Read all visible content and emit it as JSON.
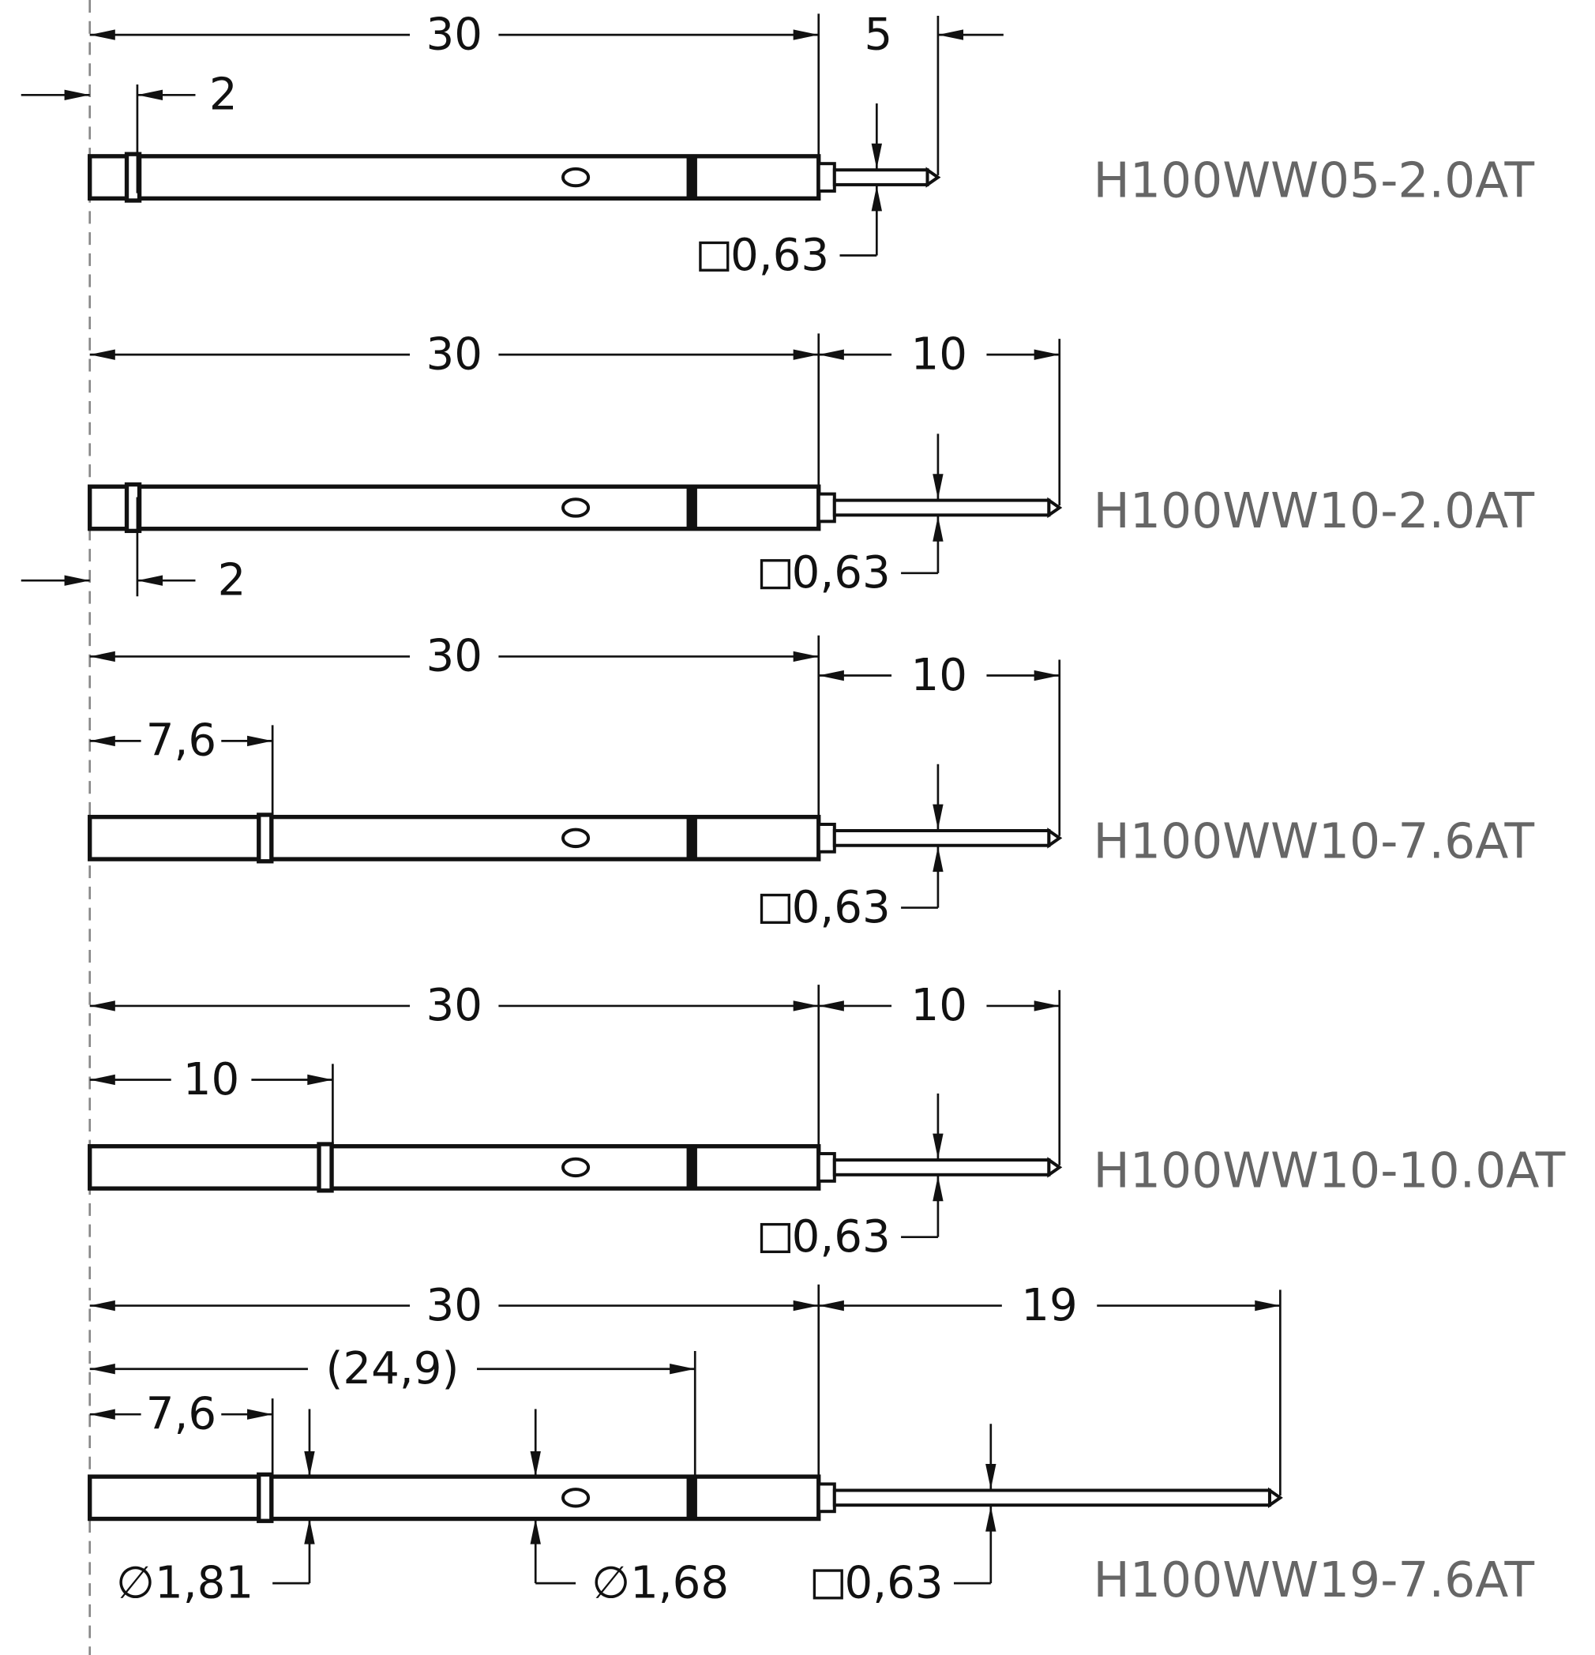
{
  "pins": [
    {
      "part": "H100WW05-2.0AT",
      "body_length": "30",
      "tip_length": "5",
      "collar": "2",
      "square": "0,63"
    },
    {
      "part": "H100WW10-2.0AT",
      "body_length": "30",
      "tip_length": "10",
      "collar": "2",
      "square": "0,63"
    },
    {
      "part": "H100WW10-7.6AT",
      "body_length": "30",
      "tip_length": "10",
      "collar": "7,6",
      "square": "0,63"
    },
    {
      "part": "H100WW10-10.0AT",
      "body_length": "30",
      "tip_length": "10",
      "collar": "10",
      "square": "0,63"
    },
    {
      "part": "H100WW19-7.6AT",
      "body_length": "30",
      "tip_length": "19",
      "collar": "7,6",
      "square": "0,63",
      "reference": "(24,9)",
      "diameter_collar": "∅1,81",
      "diameter_body": "∅1,68"
    }
  ]
}
